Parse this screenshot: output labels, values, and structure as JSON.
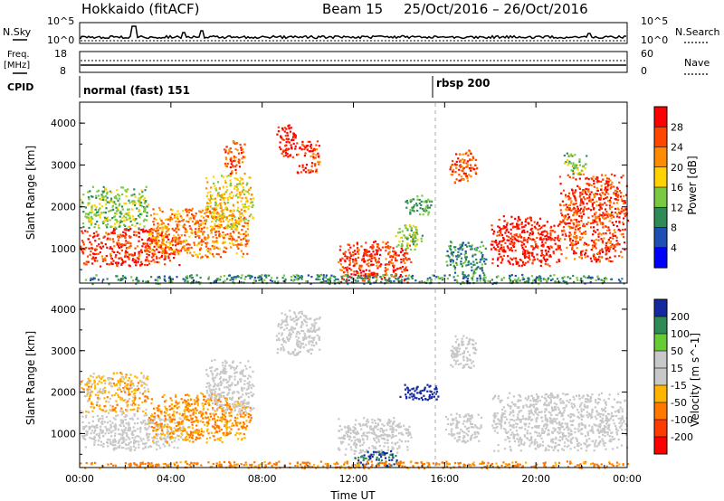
{
  "header": {
    "station": "Hokkaido (fitACF)",
    "beam": "Beam 15",
    "date_range": "25/Oct/2016 – 26/Oct/2016"
  },
  "aux_panels": {
    "nsky_label": "N.Sky",
    "nsky_top_tick": "10^5",
    "nsky_bottom_tick": "10^0",
    "nsearch_label": "N.Search",
    "nsearch_top_tick": "10^5",
    "nsearch_bottom_tick": "10^0",
    "freq_label_1": "Freq.",
    "freq_label_2": "[MHz]",
    "freq_top_tick": "18",
    "freq_bottom_tick": "8",
    "nave_label": "Nave",
    "nave_top_tick": "60",
    "nave_bottom_tick": "0",
    "cpid_label": "CPID",
    "cpid_segments": [
      "normal (fast) 151",
      "rbsp 200"
    ]
  },
  "chart_data": [
    {
      "type": "heatmap",
      "title": "",
      "xlabel": "",
      "ylabel": "Slant Range [km]",
      "colorbar_label": "Power [dB]",
      "colorbar_ticks": [
        "28",
        "24",
        "20",
        "16",
        "12",
        "8",
        "4"
      ],
      "colorbar_colors": [
        "#ff0000",
        "#ff4500",
        "#ff8c00",
        "#ffd200",
        "#7ac943",
        "#2e8b57",
        "#1e4fb4",
        "#0000ff"
      ],
      "yticks": [
        "1000",
        "2000",
        "3000",
        "4000"
      ],
      "ylim": [
        180,
        4500
      ],
      "xlim_hours": [
        0,
        24
      ],
      "blobs": [
        {
          "t0": 0.0,
          "t1": 4.5,
          "r0": 600,
          "r1": 1500,
          "v": 26
        },
        {
          "t0": 0.0,
          "t1": 3.0,
          "r0": 1500,
          "r1": 2500,
          "v": 14
        },
        {
          "t0": 3.0,
          "t1": 7.5,
          "r0": 800,
          "r1": 2000,
          "v": 22
        },
        {
          "t0": 5.5,
          "t1": 7.6,
          "r0": 1500,
          "r1": 2800,
          "v": 18
        },
        {
          "t0": 6.3,
          "t1": 7.2,
          "r0": 2800,
          "r1": 3600,
          "v": 24
        },
        {
          "t0": 8.6,
          "t1": 9.5,
          "r0": 3200,
          "r1": 4000,
          "v": 28
        },
        {
          "t0": 9.5,
          "t1": 10.5,
          "r0": 2800,
          "r1": 3600,
          "v": 26
        },
        {
          "t0": 11.3,
          "t1": 14.5,
          "r0": 200,
          "r1": 1200,
          "v": 26
        },
        {
          "t0": 13.8,
          "t1": 15.0,
          "r0": 1000,
          "r1": 1600,
          "v": 14
        },
        {
          "t0": 14.2,
          "t1": 15.4,
          "r0": 1800,
          "r1": 2300,
          "v": 12
        },
        {
          "t0": 16.2,
          "t1": 17.4,
          "r0": 2600,
          "r1": 3400,
          "v": 24
        },
        {
          "t0": 16.0,
          "t1": 17.8,
          "r0": 400,
          "r1": 1200,
          "v": 10
        },
        {
          "t0": 18.0,
          "t1": 21.0,
          "r0": 600,
          "r1": 1800,
          "v": 27
        },
        {
          "t0": 21.0,
          "t1": 24.0,
          "r0": 700,
          "r1": 2800,
          "v": 25
        },
        {
          "t0": 21.2,
          "t1": 22.2,
          "r0": 2800,
          "r1": 3300,
          "v": 14
        },
        {
          "t0": 0.0,
          "t1": 24.0,
          "r0": 180,
          "r1": 400,
          "v": 10
        }
      ]
    },
    {
      "type": "heatmap",
      "title": "",
      "xlabel": "Time UT",
      "ylabel": "Slant Range [km]",
      "colorbar_label": "Velocity [m s^-1]",
      "colorbar_ticks": [
        "200",
        "100",
        "50",
        "15",
        "-15",
        "-50",
        "-100",
        "-200"
      ],
      "colorbar_colors": [
        "#1428a0",
        "#2e8b57",
        "#66cc33",
        "#c8c8c8",
        "#c8c8c8",
        "#ffb400",
        "#ff7800",
        "#ff3c00",
        "#ff0000"
      ],
      "yticks": [
        "1000",
        "2000",
        "3000",
        "4000"
      ],
      "ylim": [
        180,
        4500
      ],
      "xtick_labels": [
        "00:00",
        "04:00",
        "08:00",
        "12:00",
        "16:00",
        "20:00",
        "00:00"
      ],
      "xtick_hours": [
        0,
        4,
        8,
        12,
        16,
        20,
        24
      ],
      "blobs": [
        {
          "t0": 0.0,
          "t1": 4.5,
          "r0": 600,
          "r1": 1500,
          "v": 0
        },
        {
          "t0": 0.0,
          "t1": 3.0,
          "r0": 1500,
          "r1": 2500,
          "v": -20
        },
        {
          "t0": 3.0,
          "t1": 7.5,
          "r0": 800,
          "r1": 2000,
          "v": -30
        },
        {
          "t0": 5.5,
          "t1": 7.6,
          "r0": 1500,
          "r1": 2800,
          "v": 0
        },
        {
          "t0": 8.6,
          "t1": 10.5,
          "r0": 2900,
          "r1": 4000,
          "v": 0
        },
        {
          "t0": 11.3,
          "t1": 14.5,
          "r0": 500,
          "r1": 1400,
          "v": 0
        },
        {
          "t0": 12.0,
          "t1": 14.0,
          "r0": 200,
          "r1": 600,
          "v": 150
        },
        {
          "t0": 14.0,
          "t1": 15.8,
          "r0": 1800,
          "r1": 2200,
          "v": 200
        },
        {
          "t0": 16.0,
          "t1": 17.6,
          "r0": 800,
          "r1": 1500,
          "v": 0
        },
        {
          "t0": 16.2,
          "t1": 17.4,
          "r0": 2600,
          "r1": 3400,
          "v": 0
        },
        {
          "t0": 18.0,
          "t1": 24.0,
          "r0": 600,
          "r1": 2000,
          "v": 0
        },
        {
          "t0": 0.0,
          "t1": 24.0,
          "r0": 180,
          "r1": 350,
          "v": -40
        }
      ]
    }
  ]
}
